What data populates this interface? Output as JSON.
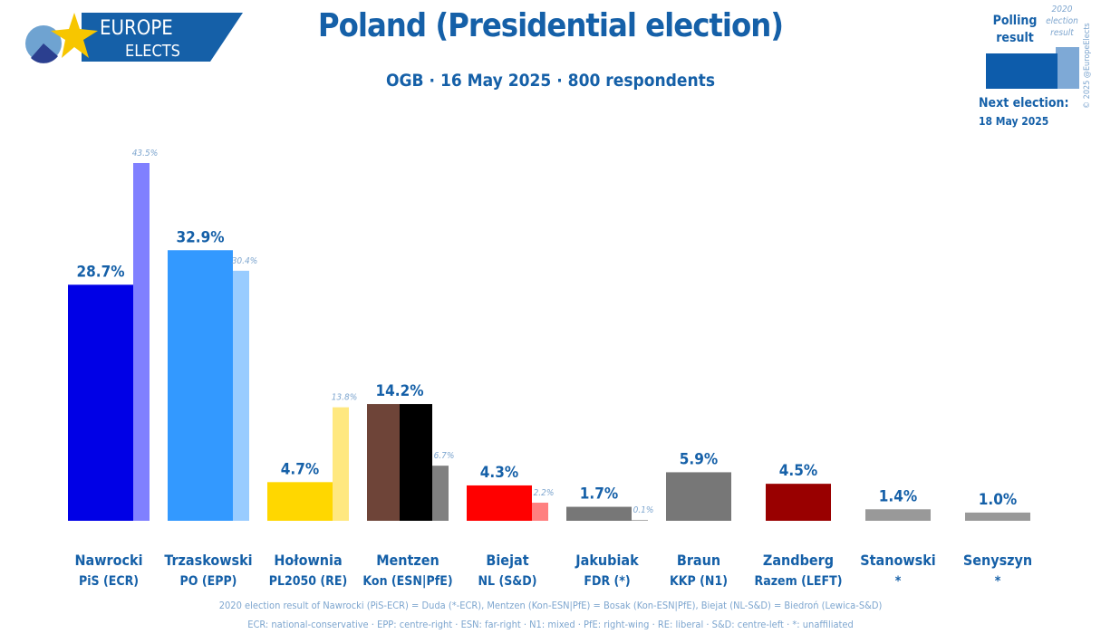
{
  "logo": {
    "line1": "EUROPE",
    "line2": "ELECTS"
  },
  "header": {
    "title": "Poland (Presidential election)",
    "subtitle": "OGB · 16 May 2025 · 800 respondents"
  },
  "legend": {
    "polling": "Polling result",
    "previous": "2020 election result",
    "copyright": "© 2025 @EuropeElects",
    "next_election_label": "Next election:",
    "next_election_date": "18 May 2025",
    "colors": {
      "polling": "#0d5cab",
      "previous": "#7ea9d6"
    }
  },
  "footer": {
    "note": "2020 election result of Nawrocki (PiS-ECR) = Duda (*-ECR), Mentzen (Kon-ESN|PfE) = Bosak (Kon-ESN|PfE), Biejat (NL-S&D) = Biedroń (Lewica-S&D)",
    "groups": "ECR: national-conservative · EPP: centre-right · ESN: far-right · N1: mixed · PfE: right-wing · RE: liberal · S&D: centre-left · *: unaffiliated"
  },
  "chart_data": {
    "type": "bar",
    "ylim": [
      0,
      45
    ],
    "grid": false,
    "categories": [
      "Nawrocki",
      "Trzaskowski",
      "Hołownia",
      "Mentzen",
      "Biejat",
      "Jakubiak",
      "Braun",
      "Zandberg",
      "Stanowski",
      "Senyszyn"
    ],
    "parties": [
      "PiS (ECR)",
      "PO (EPP)",
      "PL2050 (RE)",
      "Kon (ESN|PfE)",
      "NL (S&D)",
      "FDR (*)",
      "KKP (N1)",
      "Razem (LEFT)",
      "*",
      "*"
    ],
    "series": [
      {
        "name": "Polling result",
        "values": [
          28.7,
          32.9,
          4.7,
          14.2,
          4.3,
          1.7,
          5.9,
          4.5,
          1.4,
          1.0
        ],
        "labels": [
          "28.7%",
          "32.9%",
          "4.7%",
          "14.2%",
          "4.3%",
          "1.7%",
          "5.9%",
          "4.5%",
          "1.4%",
          "1.0%"
        ]
      },
      {
        "name": "2020 election result",
        "values": [
          43.5,
          30.4,
          13.8,
          6.7,
          2.2,
          0.1,
          null,
          null,
          null,
          null
        ],
        "labels": [
          "43.5%",
          "30.4%",
          "13.8%",
          "6.7%",
          "2.2%",
          "0.1%",
          null,
          null,
          null,
          null
        ]
      }
    ],
    "colors": [
      [
        "#0000e6",
        "#8080ff"
      ],
      [
        "#3399ff",
        "#99ccff"
      ],
      [
        "#ffd700",
        "#ffe880"
      ],
      [
        [
          "#6e4438",
          "#000000"
        ],
        "#808080"
      ],
      [
        "#ff0000",
        "#ff8080"
      ],
      [
        "#777777",
        "#aaaaaa"
      ],
      [
        "#777777",
        null
      ],
      [
        "#990000",
        null
      ],
      [
        "#999999",
        null
      ],
      [
        "#999999",
        null
      ]
    ]
  }
}
